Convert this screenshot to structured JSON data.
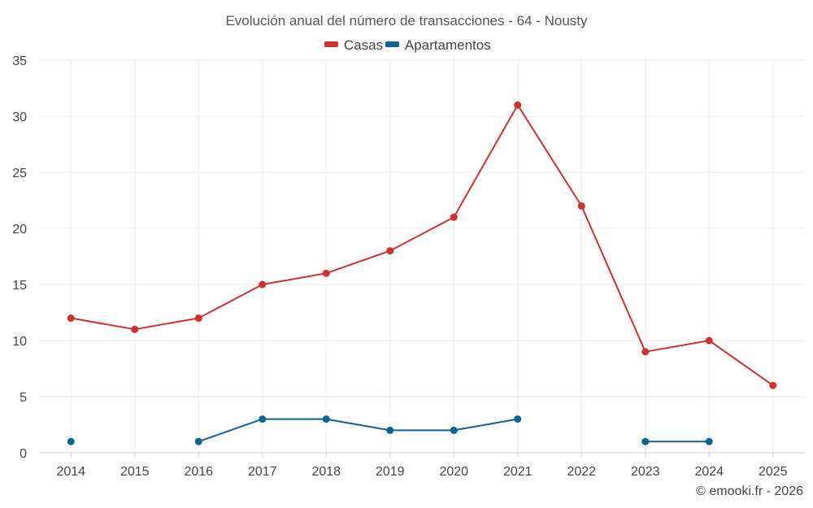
{
  "chart_data": {
    "type": "line",
    "title": "Evolución anual del número de transacciones - 64 - Nousty",
    "categories": [
      "2014",
      "2015",
      "2016",
      "2017",
      "2018",
      "2019",
      "2020",
      "2021",
      "2022",
      "2023",
      "2024",
      "2025"
    ],
    "yticks": [
      0,
      5,
      10,
      15,
      20,
      25,
      30,
      35
    ],
    "ylim": [
      0,
      35
    ],
    "grid": true,
    "legend_position": "top-center",
    "series": [
      {
        "name": "Casas",
        "color": "#d32f2f",
        "values": [
          12,
          11,
          12,
          15,
          16,
          18,
          21,
          31,
          22,
          9,
          10,
          6
        ]
      },
      {
        "name": "Apartamentos",
        "color": "#0b6496",
        "values": [
          1,
          null,
          1,
          3,
          3,
          2,
          2,
          3,
          null,
          1,
          1,
          null
        ]
      }
    ]
  },
  "credit": "© emooki.fr - 2026"
}
